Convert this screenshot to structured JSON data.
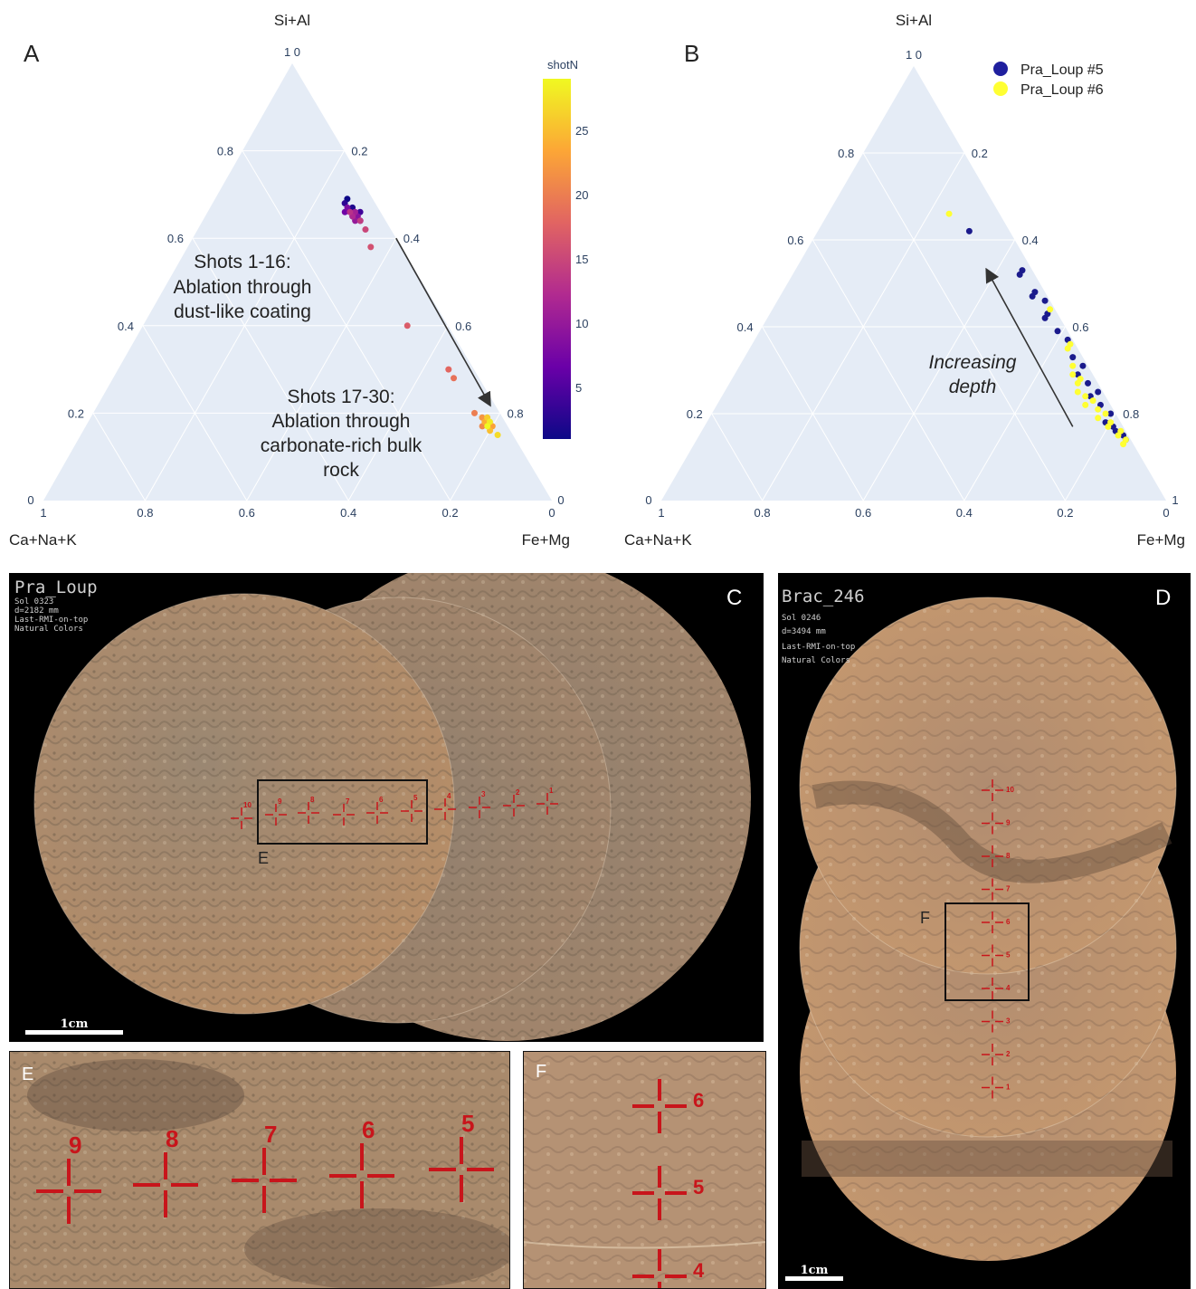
{
  "panel_labels": {
    "A": "A",
    "B": "B",
    "C": "C",
    "D": "D",
    "E": "E",
    "F": "F"
  },
  "chart_data": [
    {
      "type": "scatter",
      "subtype": "ternary",
      "panel": "A",
      "axes": {
        "top": "Si+Al",
        "left": "Ca+Na+K",
        "right": "Fe+Mg"
      },
      "ticks": {
        "top": [
          "1 0",
          "0.8",
          "0.6",
          "0.4",
          "0.2",
          "0"
        ],
        "left_edge": [
          "0.8",
          "0.6",
          "0.4",
          "0.2"
        ],
        "right_edge": [
          "0.2",
          "0.4",
          "0.6",
          "0.8"
        ],
        "bottom": [
          "1",
          "0.8",
          "0.6",
          "0.4",
          "0.2",
          "0"
        ],
        "corner_left": "0",
        "corner_right": "0",
        "top_apex": "1 0"
      },
      "colorbar": {
        "title": "shotN",
        "ticks": [
          "25",
          "20",
          "15",
          "10",
          "5"
        ],
        "range": [
          1,
          29
        ],
        "colormap": "plasma"
      },
      "annotations": [
        {
          "lines": [
            "Shots 1-16:",
            "Ablation through",
            "dust-like coating"
          ]
        },
        {
          "lines": [
            "Shots 17-30:",
            "Ablation through",
            "carbonate-rich bulk",
            "rock"
          ]
        }
      ],
      "points": [
        {
          "a": 0.69,
          "b": 0.05,
          "c": 0.26,
          "shot": 1
        },
        {
          "a": 0.67,
          "b": 0.05,
          "c": 0.28,
          "shot": 2
        },
        {
          "a": 0.68,
          "b": 0.06,
          "c": 0.26,
          "shot": 3
        },
        {
          "a": 0.66,
          "b": 0.04,
          "c": 0.3,
          "shot": 4
        },
        {
          "a": 0.65,
          "b": 0.06,
          "c": 0.29,
          "shot": 5
        },
        {
          "a": 0.64,
          "b": 0.05,
          "c": 0.31,
          "shot": 6
        },
        {
          "a": 0.66,
          "b": 0.07,
          "c": 0.27,
          "shot": 7
        },
        {
          "a": 0.67,
          "b": 0.06,
          "c": 0.27,
          "shot": 8
        },
        {
          "a": 0.65,
          "b": 0.05,
          "c": 0.3,
          "shot": 9
        },
        {
          "a": 0.64,
          "b": 0.06,
          "c": 0.3,
          "shot": 10
        },
        {
          "a": 0.66,
          "b": 0.05,
          "c": 0.29,
          "shot": 11
        },
        {
          "a": 0.65,
          "b": 0.06,
          "c": 0.29,
          "shot": 12
        },
        {
          "a": 0.66,
          "b": 0.06,
          "c": 0.28,
          "shot": 13
        },
        {
          "a": 0.64,
          "b": 0.05,
          "c": 0.31,
          "shot": 14
        },
        {
          "a": 0.62,
          "b": 0.05,
          "c": 0.33,
          "shot": 15
        },
        {
          "a": 0.58,
          "b": 0.06,
          "c": 0.36,
          "shot": 16
        },
        {
          "a": 0.4,
          "b": 0.08,
          "c": 0.52,
          "shot": 17
        },
        {
          "a": 0.3,
          "b": 0.05,
          "c": 0.65,
          "shot": 18
        },
        {
          "a": 0.28,
          "b": 0.05,
          "c": 0.67,
          "shot": 19
        },
        {
          "a": 0.2,
          "b": 0.05,
          "c": 0.75,
          "shot": 20
        },
        {
          "a": 0.17,
          "b": 0.05,
          "c": 0.78,
          "shot": 21
        },
        {
          "a": 0.19,
          "b": 0.04,
          "c": 0.77,
          "shot": 22
        },
        {
          "a": 0.17,
          "b": 0.03,
          "c": 0.8,
          "shot": 23
        },
        {
          "a": 0.18,
          "b": 0.04,
          "c": 0.78,
          "shot": 24
        },
        {
          "a": 0.16,
          "b": 0.04,
          "c": 0.8,
          "shot": 25
        },
        {
          "a": 0.19,
          "b": 0.03,
          "c": 0.78,
          "shot": 26
        },
        {
          "a": 0.15,
          "b": 0.03,
          "c": 0.82,
          "shot": 27
        },
        {
          "a": 0.18,
          "b": 0.03,
          "c": 0.79,
          "shot": 28
        },
        {
          "a": 0.17,
          "b": 0.04,
          "c": 0.79,
          "shot": 29
        }
      ],
      "arrow": {
        "from": {
          "a": 0.6,
          "b": 0.0,
          "c": 0.4
        },
        "to": {
          "a": 0.22,
          "b": 0.01,
          "c": 0.77
        }
      }
    },
    {
      "type": "scatter",
      "subtype": "ternary",
      "panel": "B",
      "axes": {
        "top": "Si+Al",
        "left": "Ca+Na+K",
        "right": "Fe+Mg"
      },
      "ticks": {
        "top_apex": "1 0",
        "left_edge": [
          "0.8",
          "0.6",
          "0.4",
          "0.2"
        ],
        "right_edge": [
          "0.2",
          "0.4",
          "0.6",
          "0.8"
        ],
        "bottom": [
          "1",
          "0.8",
          "0.6",
          "0.4",
          "0.2",
          "0"
        ],
        "corner_left": "0",
        "corner_right": "1"
      },
      "legend": {
        "placement": "top-right",
        "entries": [
          {
            "name": "Pra_Loup #5",
            "color": "#1f1f9e"
          },
          {
            "name": "Pra_Loup #6",
            "color": "#ffff33"
          }
        ]
      },
      "annotations": [
        {
          "lines": [
            "Increasing",
            "depth"
          ],
          "style": "italic"
        }
      ],
      "series": [
        {
          "name": "Pra_Loup #5",
          "color": "#1a1a8c",
          "points": [
            {
              "a": 0.62,
              "b": 0.08,
              "c": 0.3
            },
            {
              "a": 0.53,
              "b": 0.02,
              "c": 0.45
            },
            {
              "a": 0.52,
              "b": 0.03,
              "c": 0.45
            },
            {
              "a": 0.48,
              "b": 0.02,
              "c": 0.5
            },
            {
              "a": 0.47,
              "b": 0.03,
              "c": 0.5
            },
            {
              "a": 0.46,
              "b": 0.01,
              "c": 0.53
            },
            {
              "a": 0.43,
              "b": 0.02,
              "c": 0.55
            },
            {
              "a": 0.42,
              "b": 0.03,
              "c": 0.55
            },
            {
              "a": 0.39,
              "b": 0.02,
              "c": 0.59
            },
            {
              "a": 0.37,
              "b": 0.01,
              "c": 0.62
            },
            {
              "a": 0.33,
              "b": 0.02,
              "c": 0.65
            },
            {
              "a": 0.31,
              "b": 0.01,
              "c": 0.68
            },
            {
              "a": 0.29,
              "b": 0.03,
              "c": 0.68
            },
            {
              "a": 0.27,
              "b": 0.02,
              "c": 0.71
            },
            {
              "a": 0.25,
              "b": 0.01,
              "c": 0.74
            },
            {
              "a": 0.24,
              "b": 0.03,
              "c": 0.73
            },
            {
              "a": 0.22,
              "b": 0.02,
              "c": 0.76
            },
            {
              "a": 0.2,
              "b": 0.01,
              "c": 0.79
            },
            {
              "a": 0.18,
              "b": 0.03,
              "c": 0.79
            },
            {
              "a": 0.17,
              "b": 0.02,
              "c": 0.81
            },
            {
              "a": 0.15,
              "b": 0.01,
              "c": 0.84
            },
            {
              "a": 0.16,
              "b": 0.02,
              "c": 0.82
            },
            {
              "a": 0.14,
              "b": 0.01,
              "c": 0.85
            }
          ]
        },
        {
          "name": "Pra_Loup #6",
          "color": "#ffff33",
          "points": [
            {
              "a": 0.66,
              "b": 0.1,
              "c": 0.24
            },
            {
              "a": 0.44,
              "b": 0.01,
              "c": 0.55
            },
            {
              "a": 0.36,
              "b": 0.01,
              "c": 0.63
            },
            {
              "a": 0.35,
              "b": 0.02,
              "c": 0.63
            },
            {
              "a": 0.31,
              "b": 0.03,
              "c": 0.66
            },
            {
              "a": 0.29,
              "b": 0.04,
              "c": 0.67
            },
            {
              "a": 0.28,
              "b": 0.03,
              "c": 0.69
            },
            {
              "a": 0.27,
              "b": 0.04,
              "c": 0.69
            },
            {
              "a": 0.25,
              "b": 0.05,
              "c": 0.7
            },
            {
              "a": 0.24,
              "b": 0.04,
              "c": 0.72
            },
            {
              "a": 0.23,
              "b": 0.03,
              "c": 0.74
            },
            {
              "a": 0.22,
              "b": 0.05,
              "c": 0.73
            },
            {
              "a": 0.21,
              "b": 0.03,
              "c": 0.76
            },
            {
              "a": 0.2,
              "b": 0.02,
              "c": 0.78
            },
            {
              "a": 0.19,
              "b": 0.04,
              "c": 0.77
            },
            {
              "a": 0.18,
              "b": 0.02,
              "c": 0.8
            },
            {
              "a": 0.17,
              "b": 0.03,
              "c": 0.8
            },
            {
              "a": 0.16,
              "b": 0.01,
              "c": 0.83
            },
            {
              "a": 0.15,
              "b": 0.02,
              "c": 0.83
            },
            {
              "a": 0.14,
              "b": 0.01,
              "c": 0.85
            },
            {
              "a": 0.13,
              "b": 0.02,
              "c": 0.85
            }
          ]
        }
      ],
      "arrow": {
        "from": {
          "a": 0.17,
          "b": 0.1,
          "c": 0.73
        },
        "to": {
          "a": 0.53,
          "b": 0.09,
          "c": 0.38
        }
      }
    }
  ],
  "photo_C": {
    "title": "Pra_Loup",
    "meta": [
      "Sol 0323",
      "d=2182 mm",
      "Last-RMI-on-top",
      "Natural Colors"
    ],
    "scale": "1cm",
    "shots": [
      "10",
      "9",
      "8",
      "7",
      "6",
      "5",
      "4",
      "3",
      "2",
      "1"
    ],
    "inset_label": "E"
  },
  "photo_D": {
    "title": "Brac_246",
    "meta": [
      "Sol 0246",
      "d=3494 mm",
      "Last-RMI-on-top",
      "Natural Colors"
    ],
    "scale": "1cm",
    "shots": [
      "10",
      "9",
      "8",
      "7",
      "6",
      "5",
      "4",
      "3",
      "2",
      "1"
    ],
    "inset_label": "F"
  },
  "photo_E": {
    "shots": [
      "9",
      "8",
      "7",
      "6",
      "5"
    ]
  },
  "photo_F": {
    "shots": [
      "6",
      "5",
      "4"
    ]
  }
}
